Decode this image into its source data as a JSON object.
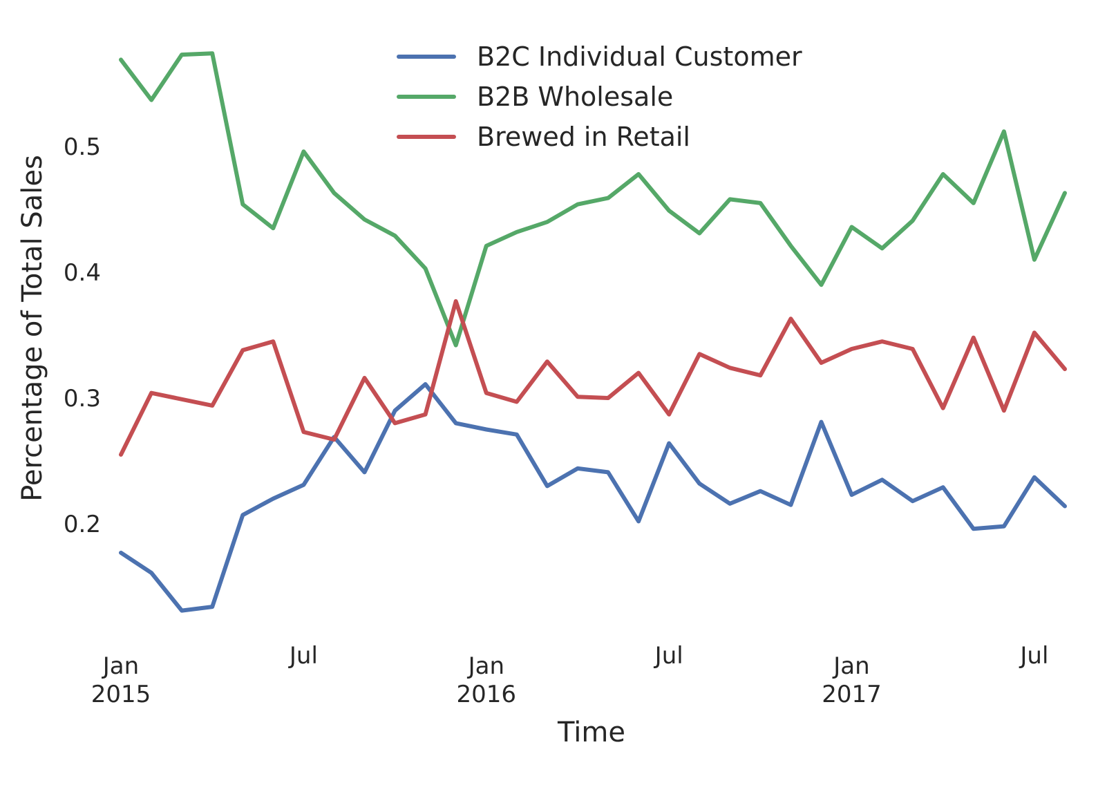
{
  "chart_data": {
    "type": "line",
    "xlabel": "Time",
    "ylabel": "Percentage of Total Sales",
    "x_start": "2015-01",
    "x_end": "2017-08",
    "x": [
      "2015-01",
      "2015-02",
      "2015-03",
      "2015-04",
      "2015-05",
      "2015-06",
      "2015-07",
      "2015-08",
      "2015-09",
      "2015-10",
      "2015-11",
      "2015-12",
      "2016-01",
      "2016-02",
      "2016-03",
      "2016-04",
      "2016-05",
      "2016-06",
      "2016-07",
      "2016-08",
      "2016-09",
      "2016-10",
      "2016-11",
      "2016-12",
      "2017-01",
      "2017-02",
      "2017-03",
      "2017-04",
      "2017-05",
      "2017-06",
      "2017-07",
      "2017-08"
    ],
    "ylim": [
      0.1,
      0.6
    ],
    "yticks": [
      {
        "value": 0.2,
        "label": "0.2"
      },
      {
        "value": 0.3,
        "label": "0.3"
      },
      {
        "value": 0.4,
        "label": "0.4"
      },
      {
        "value": 0.5,
        "label": "0.5"
      }
    ],
    "xticks": [
      {
        "x": "2015-01",
        "line1": "Jan",
        "line2": "2015"
      },
      {
        "x": "2015-07",
        "line1": "Jul",
        "line2": ""
      },
      {
        "x": "2016-01",
        "line1": "Jan",
        "line2": "2016"
      },
      {
        "x": "2016-07",
        "line1": "Jul",
        "line2": ""
      },
      {
        "x": "2017-01",
        "line1": "Jan",
        "line2": "2017"
      },
      {
        "x": "2017-07",
        "line1": "Jul",
        "line2": ""
      }
    ],
    "grid": false,
    "legend_position": "top-center",
    "series": [
      {
        "name": "B2C Individual Customer",
        "color": "#4c72b0",
        "values": [
          0.177,
          0.161,
          0.131,
          0.134,
          0.207,
          0.22,
          0.231,
          0.269,
          0.241,
          0.29,
          0.311,
          0.28,
          0.275,
          0.271,
          0.23,
          0.244,
          0.241,
          0.202,
          0.264,
          0.232,
          0.216,
          0.226,
          0.215,
          0.281,
          0.223,
          0.235,
          0.218,
          0.229,
          0.196,
          0.198,
          0.237,
          0.214
        ]
      },
      {
        "name": "B2B Wholesale",
        "color": "#55a868",
        "values": [
          0.569,
          0.537,
          0.573,
          0.574,
          0.454,
          0.435,
          0.496,
          0.463,
          0.442,
          0.429,
          0.403,
          0.342,
          0.421,
          0.432,
          0.44,
          0.454,
          0.459,
          0.478,
          0.449,
          0.431,
          0.458,
          0.455,
          0.421,
          0.39,
          0.436,
          0.419,
          0.441,
          0.478,
          0.455,
          0.512,
          0.41,
          0.463
        ]
      },
      {
        "name": "Brewed in Retail",
        "color": "#c44e52",
        "values": [
          0.255,
          0.304,
          0.299,
          0.294,
          0.338,
          0.345,
          0.273,
          0.267,
          0.316,
          0.28,
          0.287,
          0.377,
          0.304,
          0.297,
          0.329,
          0.301,
          0.3,
          0.32,
          0.287,
          0.335,
          0.324,
          0.318,
          0.363,
          0.328,
          0.339,
          0.345,
          0.339,
          0.292,
          0.348,
          0.29,
          0.352,
          0.323
        ]
      }
    ]
  }
}
